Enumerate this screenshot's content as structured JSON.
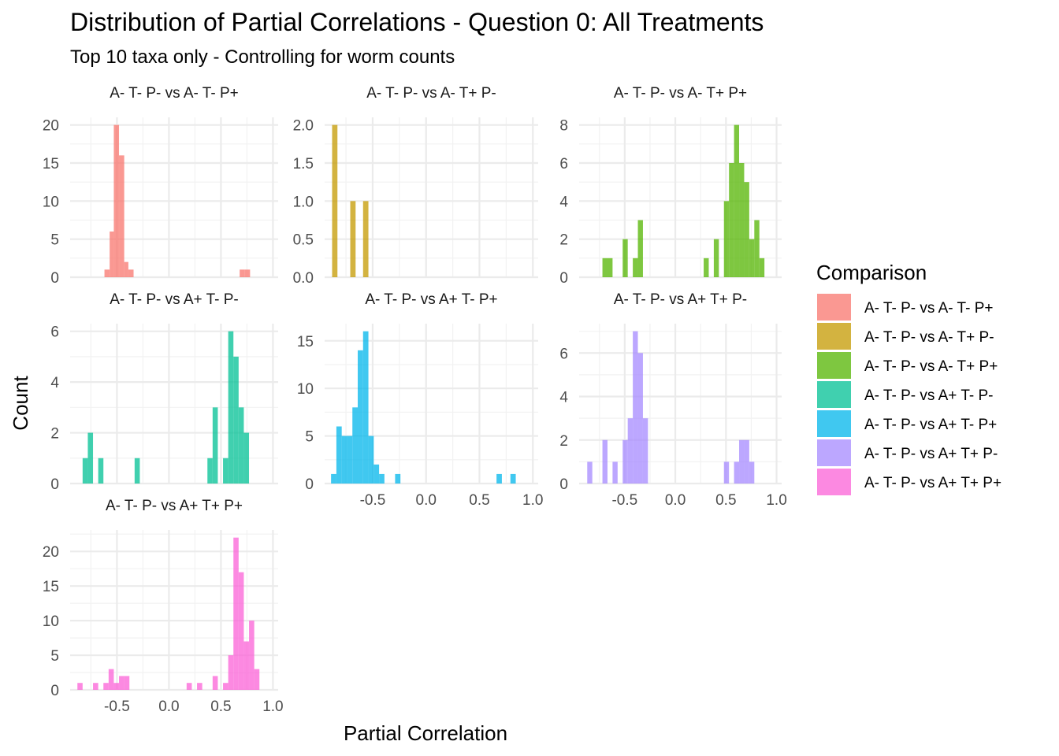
{
  "title": "Distribution of Partial Correlations - Question 0: All Treatments",
  "subtitle": "Top 10 taxa only - Controlling for worm counts",
  "chart_data": {
    "type": "histogram",
    "xlabel": "Partial Correlation",
    "ylabel": "Count",
    "xlim": [
      -0.95,
      1.05
    ],
    "x_ticks": [
      -0.5,
      0.0,
      0.5,
      1.0
    ],
    "x_tick_labels": [
      "-0.5",
      "0.0",
      "0.5",
      "1.0"
    ],
    "grid": true,
    "legend": {
      "title": "Comparison",
      "position": "right",
      "entries": [
        {
          "label": "A- T- P- vs A- T- P+",
          "color": "#F8766D"
        },
        {
          "label": "A- T- P- vs A- T+ P-",
          "color": "#C49A00"
        },
        {
          "label": "A- T- P- vs A- T+ P+",
          "color": "#53B400"
        },
        {
          "label": "A- T- P- vs A+ T- P-",
          "color": "#00C094"
        },
        {
          "label": "A- T- P- vs A+ T- P+",
          "color": "#00B6EB"
        },
        {
          "label": "A- T- P- vs A+ T+ P-",
          "color": "#A58AFF"
        },
        {
          "label": "A- T- P- vs A+ T+ P+",
          "color": "#FB61D7"
        }
      ]
    },
    "panels": [
      {
        "name": "A- T- P- vs A- T- P+",
        "color": "#F8766D",
        "ylim": [
          0,
          21
        ],
        "y_ticks": [
          0,
          5,
          10,
          15,
          20
        ],
        "y_tick_labels": [
          "0",
          "5",
          "10",
          "15",
          "20"
        ],
        "bins": [
          {
            "x0": -0.62,
            "x1": -0.57,
            "count": 1
          },
          {
            "x0": -0.57,
            "x1": -0.53,
            "count": 6
          },
          {
            "x0": -0.53,
            "x1": -0.48,
            "count": 20
          },
          {
            "x0": -0.48,
            "x1": -0.43,
            "count": 16
          },
          {
            "x0": -0.43,
            "x1": -0.39,
            "count": 2
          },
          {
            "x0": -0.39,
            "x1": -0.34,
            "count": 1
          },
          {
            "x0": 0.68,
            "x1": 0.73,
            "count": 1
          },
          {
            "x0": 0.73,
            "x1": 0.78,
            "count": 1
          }
        ]
      },
      {
        "name": "A- T- P- vs A- T+ P-",
        "color": "#C49A00",
        "ylim": [
          0,
          2.1
        ],
        "y_ticks": [
          0,
          0.5,
          1.0,
          1.5,
          2.0
        ],
        "y_tick_labels": [
          "0.0",
          "0.5",
          "1.0",
          "1.5",
          "2.0"
        ],
        "bins": [
          {
            "x0": -0.88,
            "x1": -0.83,
            "count": 2
          },
          {
            "x0": -0.71,
            "x1": -0.66,
            "count": 1
          },
          {
            "x0": -0.59,
            "x1": -0.54,
            "count": 1
          }
        ]
      },
      {
        "name": "A- T- P- vs A- T+ P+",
        "color": "#53B400",
        "ylim": [
          0,
          8.4
        ],
        "y_ticks": [
          0,
          2,
          4,
          6,
          8
        ],
        "y_tick_labels": [
          "0",
          "2",
          "4",
          "6",
          "8"
        ],
        "bins": [
          {
            "x0": -0.72,
            "x1": -0.67,
            "count": 1
          },
          {
            "x0": -0.67,
            "x1": -0.62,
            "count": 1
          },
          {
            "x0": -0.52,
            "x1": -0.47,
            "count": 2
          },
          {
            "x0": -0.42,
            "x1": -0.37,
            "count": 1
          },
          {
            "x0": -0.37,
            "x1": -0.32,
            "count": 3
          },
          {
            "x0": 0.28,
            "x1": 0.33,
            "count": 1
          },
          {
            "x0": 0.38,
            "x1": 0.43,
            "count": 2
          },
          {
            "x0": 0.48,
            "x1": 0.53,
            "count": 4
          },
          {
            "x0": 0.53,
            "x1": 0.58,
            "count": 6
          },
          {
            "x0": 0.58,
            "x1": 0.63,
            "count": 8
          },
          {
            "x0": 0.63,
            "x1": 0.68,
            "count": 6
          },
          {
            "x0": 0.68,
            "x1": 0.73,
            "count": 5
          },
          {
            "x0": 0.73,
            "x1": 0.78,
            "count": 2
          },
          {
            "x0": 0.78,
            "x1": 0.83,
            "count": 3
          },
          {
            "x0": 0.83,
            "x1": 0.88,
            "count": 1
          }
        ]
      },
      {
        "name": "A- T- P- vs A+ T- P-",
        "color": "#00C094",
        "ylim": [
          0,
          6.3
        ],
        "y_ticks": [
          0,
          2,
          4,
          6
        ],
        "y_tick_labels": [
          "0",
          "2",
          "4",
          "6"
        ],
        "bins": [
          {
            "x0": -0.83,
            "x1": -0.78,
            "count": 1
          },
          {
            "x0": -0.78,
            "x1": -0.73,
            "count": 2
          },
          {
            "x0": -0.68,
            "x1": -0.63,
            "count": 1
          },
          {
            "x0": -0.33,
            "x1": -0.28,
            "count": 1
          },
          {
            "x0": 0.37,
            "x1": 0.42,
            "count": 1
          },
          {
            "x0": 0.42,
            "x1": 0.47,
            "count": 3
          },
          {
            "x0": 0.52,
            "x1": 0.57,
            "count": 1
          },
          {
            "x0": 0.57,
            "x1": 0.62,
            "count": 6
          },
          {
            "x0": 0.62,
            "x1": 0.67,
            "count": 5
          },
          {
            "x0": 0.67,
            "x1": 0.72,
            "count": 3
          },
          {
            "x0": 0.72,
            "x1": 0.77,
            "count": 2
          }
        ]
      },
      {
        "name": "A- T- P- vs A+ T- P+",
        "color": "#00B6EB",
        "ylim": [
          0,
          16.8
        ],
        "y_ticks": [
          0,
          5,
          10,
          15
        ],
        "y_tick_labels": [
          "0",
          "5",
          "10",
          "15"
        ],
        "bins": [
          {
            "x0": -0.89,
            "x1": -0.84,
            "count": 1
          },
          {
            "x0": -0.84,
            "x1": -0.79,
            "count": 6
          },
          {
            "x0": -0.79,
            "x1": -0.74,
            "count": 5
          },
          {
            "x0": -0.74,
            "x1": -0.69,
            "count": 5
          },
          {
            "x0": -0.69,
            "x1": -0.64,
            "count": 8
          },
          {
            "x0": -0.64,
            "x1": -0.59,
            "count": 14
          },
          {
            "x0": -0.59,
            "x1": -0.54,
            "count": 16
          },
          {
            "x0": -0.54,
            "x1": -0.49,
            "count": 5
          },
          {
            "x0": -0.49,
            "x1": -0.44,
            "count": 2
          },
          {
            "x0": -0.44,
            "x1": -0.39,
            "count": 1
          },
          {
            "x0": -0.29,
            "x1": -0.24,
            "count": 1
          },
          {
            "x0": 0.66,
            "x1": 0.71,
            "count": 1
          },
          {
            "x0": 0.79,
            "x1": 0.84,
            "count": 1
          }
        ]
      },
      {
        "name": "A- T- P- vs A+ T+ P-",
        "color": "#A58AFF",
        "ylim": [
          0,
          7.35
        ],
        "y_ticks": [
          0,
          2,
          4,
          6
        ],
        "y_tick_labels": [
          "0",
          "2",
          "4",
          "6"
        ],
        "bins": [
          {
            "x0": -0.87,
            "x1": -0.82,
            "count": 1
          },
          {
            "x0": -0.72,
            "x1": -0.67,
            "count": 2
          },
          {
            "x0": -0.62,
            "x1": -0.57,
            "count": 1
          },
          {
            "x0": -0.52,
            "x1": -0.47,
            "count": 2
          },
          {
            "x0": -0.47,
            "x1": -0.42,
            "count": 3
          },
          {
            "x0": -0.42,
            "x1": -0.37,
            "count": 7
          },
          {
            "x0": -0.37,
            "x1": -0.32,
            "count": 6
          },
          {
            "x0": -0.32,
            "x1": -0.27,
            "count": 3
          },
          {
            "x0": 0.48,
            "x1": 0.53,
            "count": 1
          },
          {
            "x0": 0.58,
            "x1": 0.63,
            "count": 1
          },
          {
            "x0": 0.63,
            "x1": 0.68,
            "count": 2
          },
          {
            "x0": 0.68,
            "x1": 0.73,
            "count": 2
          },
          {
            "x0": 0.73,
            "x1": 0.78,
            "count": 1
          }
        ]
      },
      {
        "name": "A- T- P- vs A+ T+ P+",
        "color": "#FB61D7",
        "ylim": [
          0,
          23.1
        ],
        "y_ticks": [
          0,
          5,
          10,
          15,
          20
        ],
        "y_tick_labels": [
          "0",
          "5",
          "10",
          "15",
          "20"
        ],
        "bins": [
          {
            "x0": -0.88,
            "x1": -0.83,
            "count": 1
          },
          {
            "x0": -0.73,
            "x1": -0.68,
            "count": 1
          },
          {
            "x0": -0.63,
            "x1": -0.58,
            "count": 1
          },
          {
            "x0": -0.58,
            "x1": -0.53,
            "count": 3
          },
          {
            "x0": -0.53,
            "x1": -0.48,
            "count": 1
          },
          {
            "x0": -0.48,
            "x1": -0.43,
            "count": 2
          },
          {
            "x0": -0.43,
            "x1": -0.38,
            "count": 2
          },
          {
            "x0": 0.17,
            "x1": 0.22,
            "count": 1
          },
          {
            "x0": 0.27,
            "x1": 0.32,
            "count": 1
          },
          {
            "x0": 0.42,
            "x1": 0.47,
            "count": 2
          },
          {
            "x0": 0.52,
            "x1": 0.57,
            "count": 1
          },
          {
            "x0": 0.57,
            "x1": 0.62,
            "count": 5
          },
          {
            "x0": 0.62,
            "x1": 0.67,
            "count": 22
          },
          {
            "x0": 0.67,
            "x1": 0.72,
            "count": 17
          },
          {
            "x0": 0.72,
            "x1": 0.77,
            "count": 7
          },
          {
            "x0": 0.77,
            "x1": 0.82,
            "count": 10
          },
          {
            "x0": 0.82,
            "x1": 0.87,
            "count": 3
          }
        ]
      }
    ]
  }
}
